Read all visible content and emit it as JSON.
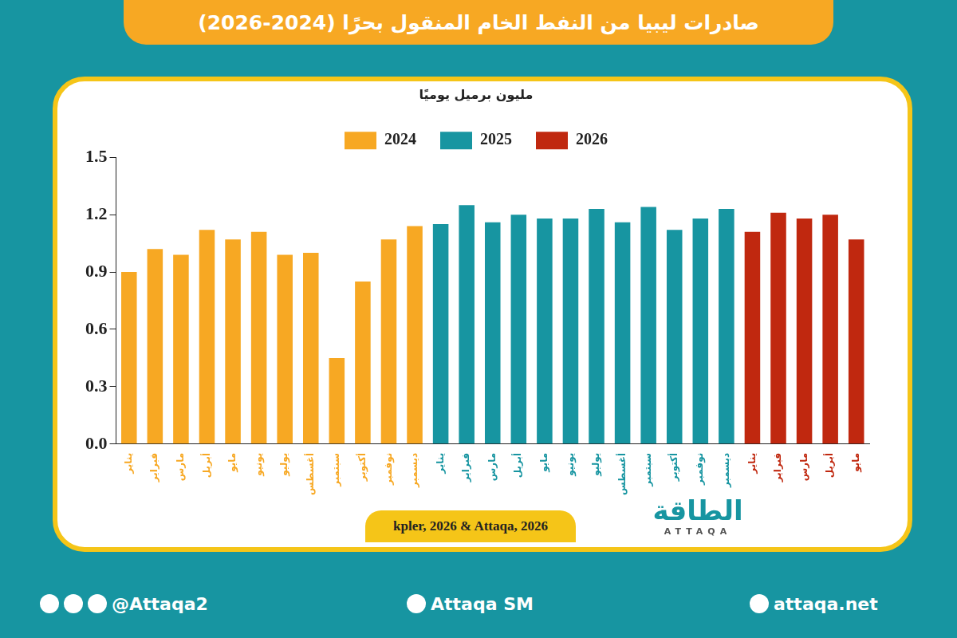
{
  "chart_data": {
    "type": "bar",
    "title": "صادرات ليبيا من النفط الخام المنقول بحرًا (2024-2026)",
    "y_label": "مليون برميل يوميًا",
    "categories": [
      "يناير",
      "فبراير",
      "مارس",
      "أبريل",
      "مايو",
      "يونيو",
      "يوليو",
      "أغسطس",
      "سبتمبر",
      "أكتوبر",
      "نوفمبر",
      "ديسمبر",
      "يناير",
      "فبراير",
      "مارس",
      "أبريل",
      "مايو",
      "يونيو",
      "يوليو",
      "أغسطس",
      "سبتمبر",
      "أكتوبر",
      "نوفمبر",
      "ديسمبر",
      "يناير",
      "فبراير",
      "مارس",
      "أبريل",
      "مايو"
    ],
    "series": [
      {
        "name": "2024",
        "color": "#f7a823",
        "values": [
          0.9,
          1.02,
          0.99,
          1.12,
          1.07,
          1.11,
          0.99,
          1.0,
          0.45,
          0.85,
          1.07,
          1.14,
          null,
          null,
          null,
          null,
          null,
          null,
          null,
          null,
          null,
          null,
          null,
          null,
          null,
          null,
          null,
          null,
          null
        ]
      },
      {
        "name": "2025",
        "color": "#1795a1",
        "values": [
          null,
          null,
          null,
          null,
          null,
          null,
          null,
          null,
          null,
          null,
          null,
          null,
          1.15,
          1.25,
          1.16,
          1.2,
          1.18,
          1.18,
          1.23,
          1.16,
          1.24,
          1.12,
          1.18,
          1.23,
          null,
          null,
          null,
          null,
          null
        ]
      },
      {
        "name": "2026",
        "color": "#c0280f",
        "values": [
          null,
          null,
          null,
          null,
          null,
          null,
          null,
          null,
          null,
          null,
          null,
          null,
          null,
          null,
          null,
          null,
          null,
          null,
          null,
          null,
          null,
          null,
          null,
          null,
          1.11,
          1.21,
          1.18,
          1.2,
          1.07
        ]
      }
    ],
    "ylim": [
      0,
      1.5
    ],
    "yticks": [
      {
        "value": 0,
        "label": "0.0"
      },
      0.3,
      0.6,
      0.9,
      1.2,
      1.5
    ],
    "grid": false,
    "legend": "top"
  },
  "page": {
    "source": "kpler, 2026 & Attaqa, 2026",
    "logo": "الطاقة",
    "logo_sub": "ATTAQA",
    "footer": [
      "@Attaqa2",
      "Attaqa SM",
      "attaqa.net"
    ]
  }
}
